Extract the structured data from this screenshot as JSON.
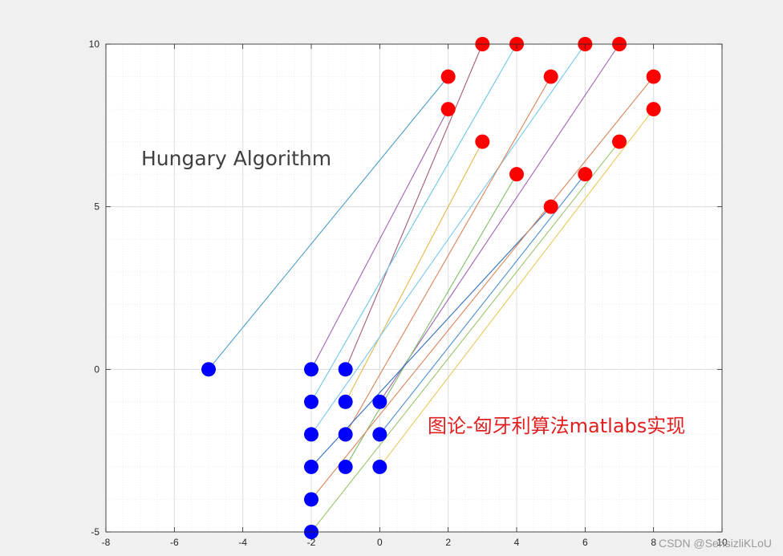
{
  "chart_data": {
    "type": "scatter",
    "title": "Hungary Algorithm",
    "annotation": "图论-匈牙利算法matlabs实现",
    "xlim": [
      -8,
      10
    ],
    "ylim": [
      -5,
      10
    ],
    "xticks": [
      -8,
      -6,
      -4,
      -2,
      0,
      2,
      4,
      6,
      8,
      10
    ],
    "yticks": [
      -5,
      0,
      5,
      10
    ],
    "grid": "minor",
    "left_points": [
      [
        -5,
        0
      ],
      [
        -2,
        0
      ],
      [
        -1,
        0
      ],
      [
        -2,
        -1
      ],
      [
        -1,
        -1
      ],
      [
        0,
        -1
      ],
      [
        -2,
        -2
      ],
      [
        -1,
        -2
      ],
      [
        0,
        -2
      ],
      [
        -2,
        -3
      ],
      [
        -1,
        -3
      ],
      [
        0,
        -3
      ],
      [
        -2,
        -4
      ],
      [
        -2,
        -5
      ]
    ],
    "right_points": [
      [
        3,
        10
      ],
      [
        4,
        10
      ],
      [
        6,
        10
      ],
      [
        7,
        10
      ],
      [
        2,
        9
      ],
      [
        5,
        9
      ],
      [
        8,
        9
      ],
      [
        2,
        8
      ],
      [
        8,
        8
      ],
      [
        3,
        7
      ],
      [
        7,
        7
      ],
      [
        4,
        6
      ],
      [
        6,
        6
      ],
      [
        5,
        5
      ]
    ],
    "matches": [
      {
        "from": [
          -5,
          0
        ],
        "to": [
          2,
          9
        ],
        "color": "#4a9fc9"
      },
      {
        "from": [
          -2,
          0
        ],
        "to": [
          2,
          8
        ],
        "color": "#a063b3"
      },
      {
        "from": [
          -1,
          0
        ],
        "to": [
          3,
          10
        ],
        "color": "#a85a7a"
      },
      {
        "from": [
          -2,
          -1
        ],
        "to": [
          4,
          10
        ],
        "color": "#6bc6e6"
      },
      {
        "from": [
          -1,
          -1
        ],
        "to": [
          3,
          7
        ],
        "color": "#e8b84a"
      },
      {
        "from": [
          -2,
          -2
        ],
        "to": [
          6,
          10
        ],
        "color": "#78c8ef"
      },
      {
        "from": [
          -1,
          -2
        ],
        "to": [
          5,
          9
        ],
        "color": "#d9845a"
      },
      {
        "from": [
          0,
          -1
        ],
        "to": [
          7,
          10
        ],
        "color": "#a063b3"
      },
      {
        "from": [
          -1,
          -3
        ],
        "to": [
          4,
          6
        ],
        "color": "#7fbf6a"
      },
      {
        "from": [
          0,
          -2
        ],
        "to": [
          6,
          6
        ],
        "color": "#4a8fd0"
      },
      {
        "from": [
          -2,
          -3
        ],
        "to": [
          5,
          5
        ],
        "color": "#2f6fbf"
      },
      {
        "from": [
          -2,
          -4
        ],
        "to": [
          8,
          9
        ],
        "color": "#d9845a"
      },
      {
        "from": [
          -2,
          -5
        ],
        "to": [
          7,
          7
        ],
        "color": "#9cc56a"
      },
      {
        "from": [
          0,
          -3
        ],
        "to": [
          8,
          8
        ],
        "color": "#e8c85a"
      }
    ],
    "left_color": "#0000ff",
    "right_color": "#ff0000"
  },
  "watermark": "CSDN @SensizliKLoU"
}
